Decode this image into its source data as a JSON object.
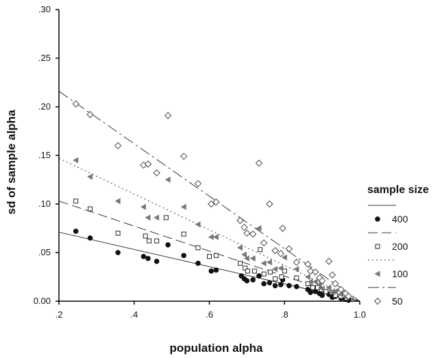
{
  "chart_data": {
    "type": "scatter",
    "title": "",
    "xlabel": "population alpha",
    "ylabel": "sd of sample alpha",
    "xlim": [
      0.2,
      1.0
    ],
    "ylim": [
      0.0,
      0.3
    ],
    "x_ticks": [
      ".2",
      ".4",
      ".6",
      ".8",
      "1.0"
    ],
    "y_ticks": [
      "0.00",
      ".05",
      ".10",
      ".15",
      ".20",
      ".25",
      ".30"
    ],
    "grid": false,
    "legend": {
      "title": "sample size",
      "position": "right"
    },
    "series": [
      {
        "name": "400",
        "marker": "filled-circle",
        "line_style": "solid",
        "fit_line": [
          [
            0.2,
            0.071
          ],
          [
            1.0,
            0.0
          ]
        ],
        "points": [
          [
            0.245,
            0.072
          ],
          [
            0.283,
            0.065
          ],
          [
            0.357,
            0.05
          ],
          [
            0.425,
            0.046
          ],
          [
            0.437,
            0.044
          ],
          [
            0.46,
            0.041
          ],
          [
            0.49,
            0.058
          ],
          [
            0.532,
            0.047
          ],
          [
            0.57,
            0.039
          ],
          [
            0.605,
            0.031
          ],
          [
            0.618,
            0.032
          ],
          [
            0.685,
            0.026
          ],
          [
            0.693,
            0.023
          ],
          [
            0.7,
            0.021
          ],
          [
            0.716,
            0.022
          ],
          [
            0.732,
            0.026
          ],
          [
            0.745,
            0.018
          ],
          [
            0.76,
            0.019
          ],
          [
            0.775,
            0.016
          ],
          [
            0.79,
            0.017
          ],
          [
            0.795,
            0.022
          ],
          [
            0.812,
            0.016
          ],
          [
            0.832,
            0.015
          ],
          [
            0.862,
            0.012
          ],
          [
            0.869,
            0.009
          ],
          [
            0.882,
            0.01
          ],
          [
            0.893,
            0.008
          ],
          [
            0.9,
            0.006
          ],
          [
            0.918,
            0.007
          ],
          [
            0.927,
            0.004
          ],
          [
            0.935,
            0.005
          ],
          [
            0.95,
            0.003
          ],
          [
            0.962,
            0.002
          ],
          [
            0.97,
            0.001
          ]
        ]
      },
      {
        "name": "200",
        "marker": "open-square",
        "line_style": "dashed",
        "fit_line": [
          [
            0.2,
            0.103
          ],
          [
            1.0,
            0.0
          ]
        ],
        "points": [
          [
            0.245,
            0.103
          ],
          [
            0.283,
            0.095
          ],
          [
            0.357,
            0.07
          ],
          [
            0.43,
            0.067
          ],
          [
            0.44,
            0.062
          ],
          [
            0.46,
            0.062
          ],
          [
            0.485,
            0.086
          ],
          [
            0.532,
            0.069
          ],
          [
            0.57,
            0.055
          ],
          [
            0.6,
            0.046
          ],
          [
            0.618,
            0.047
          ],
          [
            0.682,
            0.039
          ],
          [
            0.695,
            0.034
          ],
          [
            0.702,
            0.031
          ],
          [
            0.72,
            0.031
          ],
          [
            0.735,
            0.053
          ],
          [
            0.745,
            0.028
          ],
          [
            0.762,
            0.03
          ],
          [
            0.775,
            0.023
          ],
          [
            0.792,
            0.025
          ],
          [
            0.8,
            0.031
          ],
          [
            0.832,
            0.024
          ],
          [
            0.862,
            0.018
          ],
          [
            0.875,
            0.014
          ],
          [
            0.888,
            0.014
          ],
          [
            0.898,
            0.012
          ],
          [
            0.91,
            0.01
          ],
          [
            0.925,
            0.009
          ],
          [
            0.935,
            0.006
          ],
          [
            0.95,
            0.005
          ],
          [
            0.965,
            0.003
          ]
        ]
      },
      {
        "name": "100",
        "marker": "filled-triangle-left",
        "line_style": "dotted",
        "fit_line": [
          [
            0.2,
            0.147
          ],
          [
            1.0,
            0.0
          ]
        ],
        "points": [
          [
            0.245,
            0.145
          ],
          [
            0.283,
            0.128
          ],
          [
            0.357,
            0.103
          ],
          [
            0.425,
            0.097
          ],
          [
            0.437,
            0.086
          ],
          [
            0.46,
            0.086
          ],
          [
            0.49,
            0.125
          ],
          [
            0.532,
            0.097
          ],
          [
            0.57,
            0.079
          ],
          [
            0.605,
            0.066
          ],
          [
            0.618,
            0.066
          ],
          [
            0.682,
            0.055
          ],
          [
            0.693,
            0.048
          ],
          [
            0.7,
            0.044
          ],
          [
            0.716,
            0.044
          ],
          [
            0.732,
            0.075
          ],
          [
            0.745,
            0.039
          ],
          [
            0.76,
            0.04
          ],
          [
            0.775,
            0.033
          ],
          [
            0.79,
            0.034
          ],
          [
            0.8,
            0.045
          ],
          [
            0.832,
            0.033
          ],
          [
            0.862,
            0.025
          ],
          [
            0.869,
            0.02
          ],
          [
            0.882,
            0.02
          ],
          [
            0.893,
            0.017
          ],
          [
            0.9,
            0.013
          ],
          [
            0.918,
            0.014
          ],
          [
            0.927,
            0.009
          ],
          [
            0.935,
            0.01
          ],
          [
            0.95,
            0.007
          ],
          [
            0.965,
            0.004
          ]
        ]
      },
      {
        "name": "50",
        "marker": "open-diamond",
        "line_style": "dash-dot",
        "fit_line": [
          [
            0.2,
            0.216
          ],
          [
            1.0,
            0.0
          ]
        ],
        "points": [
          [
            0.245,
            0.203
          ],
          [
            0.283,
            0.192
          ],
          [
            0.357,
            0.16
          ],
          [
            0.425,
            0.14
          ],
          [
            0.437,
            0.141
          ],
          [
            0.46,
            0.132
          ],
          [
            0.49,
            0.191
          ],
          [
            0.532,
            0.149
          ],
          [
            0.57,
            0.121
          ],
          [
            0.605,
            0.1
          ],
          [
            0.618,
            0.102
          ],
          [
            0.682,
            0.083
          ],
          [
            0.693,
            0.076
          ],
          [
            0.7,
            0.07
          ],
          [
            0.716,
            0.069
          ],
          [
            0.732,
            0.142
          ],
          [
            0.745,
            0.06
          ],
          [
            0.76,
            0.1
          ],
          [
            0.775,
            0.052
          ],
          [
            0.79,
            0.049
          ],
          [
            0.795,
            0.075
          ],
          [
            0.812,
            0.054
          ],
          [
            0.832,
            0.04
          ],
          [
            0.862,
            0.038
          ],
          [
            0.869,
            0.031
          ],
          [
            0.882,
            0.03
          ],
          [
            0.893,
            0.024
          ],
          [
            0.9,
            0.021
          ],
          [
            0.918,
            0.041
          ],
          [
            0.927,
            0.027
          ],
          [
            0.935,
            0.018
          ],
          [
            0.95,
            0.012
          ],
          [
            0.962,
            0.008
          ],
          [
            0.97,
            0.005
          ]
        ]
      }
    ]
  }
}
